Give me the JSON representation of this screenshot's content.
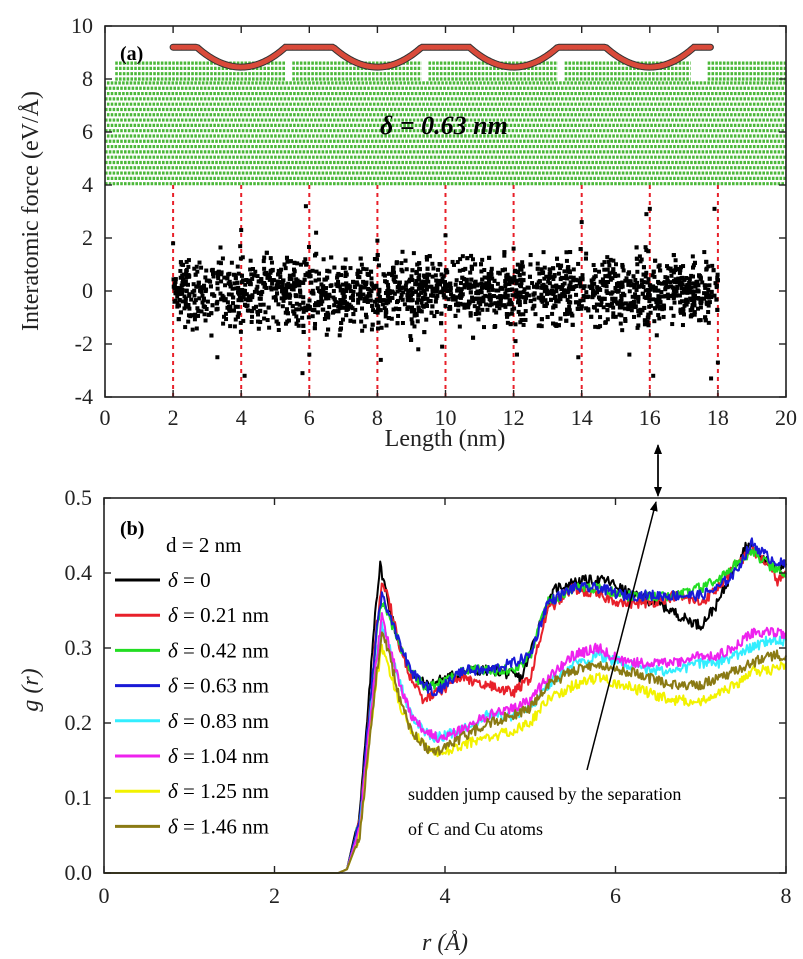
{
  "chart_data": [
    {
      "id": "a",
      "type": "scatter",
      "panel_label": "(a)",
      "xlabel": "Length (nm)",
      "ylabel": "Interatomic force (eV/Å)",
      "xlim": [
        0,
        20
      ],
      "ylim": [
        -4,
        10
      ],
      "xticks": [
        0,
        2,
        4,
        6,
        8,
        10,
        12,
        14,
        16,
        18,
        20
      ],
      "yticks": [
        -4,
        -2,
        0,
        2,
        4,
        6,
        8,
        10
      ],
      "inset_text": "δ = 0.63 nm",
      "scatter_xrange": [
        2,
        18
      ],
      "scatter_spread": 0.65,
      "spikes": [
        {
          "x": 2.0,
          "y": 1.8
        },
        {
          "x": 4.0,
          "y": 2.3
        },
        {
          "x": 4.1,
          "y": -3.2
        },
        {
          "x": 5.9,
          "y": 3.2
        },
        {
          "x": 6.0,
          "y": -2.4
        },
        {
          "x": 5.8,
          "y": -3.1
        },
        {
          "x": 8.0,
          "y": 1.9
        },
        {
          "x": 8.1,
          "y": -2.6
        },
        {
          "x": 10.0,
          "y": 2.1
        },
        {
          "x": 9.9,
          "y": -2.1
        },
        {
          "x": 12.0,
          "y": 1.6
        },
        {
          "x": 12.1,
          "y": -2.4
        },
        {
          "x": 14.0,
          "y": 2.6
        },
        {
          "x": 13.9,
          "y": -2.5
        },
        {
          "x": 16.0,
          "y": 3.1
        },
        {
          "x": 16.1,
          "y": -3.2
        },
        {
          "x": 15.9,
          "y": 2.9
        },
        {
          "x": 17.9,
          "y": 3.1
        },
        {
          "x": 17.8,
          "y": -3.3
        },
        {
          "x": 18.0,
          "y": -2.7
        },
        {
          "x": 6.2,
          "y": 2.2
        },
        {
          "x": 9.2,
          "y": -2.2
        },
        {
          "x": 3.3,
          "y": -2.5
        },
        {
          "x": 15.4,
          "y": -2.4
        }
      ],
      "vlines": [
        2,
        4,
        6,
        8,
        10,
        12,
        14,
        16,
        18
      ],
      "colors": {
        "points": "#000000",
        "vlines": "#e8202a",
        "graphene": "#d94a3a",
        "copper": "#4cb83a"
      }
    },
    {
      "id": "b",
      "type": "line",
      "panel_label": "(b)",
      "subtitle": "d = 2 nm",
      "xlabel": "r (Å)",
      "ylabel": "g (r)",
      "xlim": [
        0,
        8
      ],
      "ylim": [
        0,
        0.5
      ],
      "xticks": [
        0,
        2,
        4,
        6,
        8
      ],
      "yticks": [
        0.0,
        0.1,
        0.2,
        0.3,
        0.4,
        0.5
      ],
      "ytick_labels": [
        "0.0",
        "0.1",
        "0.2",
        "0.3",
        "0.4",
        "0.5"
      ],
      "annotation": [
        "sudden jump caused by the separation",
        "of C and Cu atoms"
      ],
      "series": [
        {
          "name": "δ = 0",
          "color": "#000000",
          "x": [
            0,
            2.75,
            2.85,
            3.0,
            3.1,
            3.18,
            3.24,
            3.3,
            3.4,
            3.5,
            3.65,
            3.8,
            4.0,
            4.3,
            4.6,
            4.9,
            5.1,
            5.3,
            5.6,
            5.9,
            6.2,
            6.5,
            6.8,
            7.0,
            7.2,
            7.4,
            7.55,
            7.7,
            7.85,
            8.0
          ],
          "y": [
            0,
            0,
            0.005,
            0.08,
            0.22,
            0.35,
            0.41,
            0.38,
            0.33,
            0.29,
            0.26,
            0.25,
            0.26,
            0.27,
            0.27,
            0.26,
            0.33,
            0.38,
            0.39,
            0.39,
            0.37,
            0.36,
            0.34,
            0.33,
            0.36,
            0.41,
            0.44,
            0.42,
            0.41,
            0.41
          ]
        },
        {
          "name": "δ = 0.21 nm",
          "color": "#e8202a",
          "x": [
            0,
            2.75,
            2.85,
            3.0,
            3.1,
            3.2,
            3.27,
            3.33,
            3.45,
            3.6,
            3.75,
            3.9,
            4.2,
            4.5,
            4.8,
            5.0,
            5.2,
            5.5,
            5.8,
            6.1,
            6.4,
            6.7,
            7.0,
            7.2,
            7.4,
            7.6,
            7.8,
            7.9,
            8.0
          ],
          "y": [
            0,
            0,
            0.005,
            0.07,
            0.2,
            0.33,
            0.39,
            0.37,
            0.31,
            0.26,
            0.23,
            0.24,
            0.26,
            0.25,
            0.24,
            0.26,
            0.35,
            0.38,
            0.37,
            0.36,
            0.36,
            0.37,
            0.36,
            0.38,
            0.41,
            0.43,
            0.41,
            0.39,
            0.4
          ]
        },
        {
          "name": "δ = 0.42 nm",
          "color": "#22dd22",
          "x": [
            0,
            2.75,
            2.85,
            3.0,
            3.1,
            3.2,
            3.25,
            3.32,
            3.45,
            3.6,
            3.75,
            3.9,
            4.2,
            4.5,
            4.8,
            5.0,
            5.2,
            5.5,
            5.8,
            6.1,
            6.4,
            6.7,
            7.0,
            7.2,
            7.4,
            7.6,
            7.8,
            8.0
          ],
          "y": [
            0,
            0,
            0.005,
            0.07,
            0.2,
            0.32,
            0.36,
            0.35,
            0.31,
            0.27,
            0.25,
            0.25,
            0.27,
            0.27,
            0.27,
            0.29,
            0.36,
            0.38,
            0.38,
            0.37,
            0.37,
            0.37,
            0.38,
            0.39,
            0.41,
            0.43,
            0.41,
            0.4
          ]
        },
        {
          "name": "δ = 0.63 nm",
          "color": "#1a1ad6",
          "x": [
            0,
            2.75,
            2.85,
            3.0,
            3.1,
            3.2,
            3.26,
            3.33,
            3.45,
            3.6,
            3.75,
            3.9,
            4.2,
            4.5,
            4.8,
            5.0,
            5.2,
            5.5,
            5.8,
            6.1,
            6.4,
            6.7,
            7.0,
            7.2,
            7.4,
            7.6,
            7.8,
            8.0
          ],
          "y": [
            0,
            0,
            0.005,
            0.07,
            0.2,
            0.33,
            0.37,
            0.35,
            0.31,
            0.27,
            0.25,
            0.24,
            0.27,
            0.27,
            0.28,
            0.29,
            0.36,
            0.38,
            0.38,
            0.37,
            0.37,
            0.37,
            0.37,
            0.38,
            0.4,
            0.44,
            0.42,
            0.41
          ]
        },
        {
          "name": "δ = 0.83 nm",
          "color": "#33eeff",
          "x": [
            0,
            2.75,
            2.85,
            3.0,
            3.1,
            3.2,
            3.26,
            3.33,
            3.45,
            3.6,
            3.75,
            3.9,
            4.2,
            4.5,
            4.8,
            5.0,
            5.2,
            5.5,
            5.8,
            6.1,
            6.4,
            6.7,
            7.0,
            7.2,
            7.4,
            7.6,
            7.8,
            8.0
          ],
          "y": [
            0,
            0,
            0.005,
            0.06,
            0.18,
            0.29,
            0.33,
            0.31,
            0.26,
            0.21,
            0.19,
            0.18,
            0.19,
            0.21,
            0.21,
            0.22,
            0.25,
            0.28,
            0.29,
            0.28,
            0.27,
            0.27,
            0.28,
            0.28,
            0.29,
            0.3,
            0.31,
            0.31
          ]
        },
        {
          "name": "δ = 1.04 nm",
          "color": "#ee22ee",
          "x": [
            0,
            2.75,
            2.85,
            3.0,
            3.1,
            3.2,
            3.26,
            3.33,
            3.45,
            3.6,
            3.75,
            3.9,
            4.2,
            4.5,
            4.8,
            5.0,
            5.2,
            5.5,
            5.8,
            6.1,
            6.4,
            6.7,
            7.0,
            7.2,
            7.4,
            7.6,
            7.8,
            8.0
          ],
          "y": [
            0,
            0,
            0.005,
            0.06,
            0.18,
            0.29,
            0.34,
            0.31,
            0.26,
            0.21,
            0.19,
            0.18,
            0.19,
            0.21,
            0.22,
            0.23,
            0.26,
            0.29,
            0.3,
            0.28,
            0.28,
            0.28,
            0.29,
            0.29,
            0.3,
            0.32,
            0.32,
            0.32
          ]
        },
        {
          "name": "δ = 1.25 nm",
          "color": "#f2f200",
          "x": [
            0,
            2.75,
            2.85,
            3.0,
            3.1,
            3.2,
            3.26,
            3.33,
            3.45,
            3.6,
            3.75,
            3.9,
            4.2,
            4.5,
            4.8,
            5.0,
            5.2,
            5.5,
            5.8,
            6.1,
            6.4,
            6.7,
            7.0,
            7.2,
            7.4,
            7.6,
            7.8,
            8.0
          ],
          "y": [
            0,
            0,
            0.005,
            0.05,
            0.16,
            0.26,
            0.3,
            0.28,
            0.23,
            0.19,
            0.17,
            0.16,
            0.17,
            0.18,
            0.19,
            0.2,
            0.23,
            0.25,
            0.26,
            0.25,
            0.24,
            0.23,
            0.23,
            0.24,
            0.25,
            0.27,
            0.27,
            0.28
          ]
        },
        {
          "name": "δ = 1.46 nm",
          "color": "#8a7a14",
          "x": [
            0,
            2.75,
            2.85,
            3.0,
            3.1,
            3.2,
            3.26,
            3.33,
            3.45,
            3.6,
            3.75,
            3.9,
            4.2,
            4.5,
            4.8,
            5.0,
            5.2,
            5.5,
            5.8,
            6.1,
            6.4,
            6.7,
            7.0,
            7.2,
            7.4,
            7.6,
            7.8,
            8.0
          ],
          "y": [
            0,
            0,
            0.005,
            0.05,
            0.16,
            0.27,
            0.32,
            0.3,
            0.24,
            0.19,
            0.17,
            0.16,
            0.18,
            0.2,
            0.21,
            0.22,
            0.25,
            0.27,
            0.28,
            0.27,
            0.26,
            0.25,
            0.25,
            0.26,
            0.27,
            0.28,
            0.29,
            0.29
          ]
        }
      ]
    }
  ]
}
